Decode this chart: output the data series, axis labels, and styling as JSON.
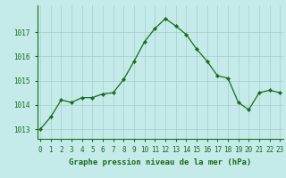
{
  "x": [
    0,
    1,
    2,
    3,
    4,
    5,
    6,
    7,
    8,
    9,
    10,
    11,
    12,
    13,
    14,
    15,
    16,
    17,
    18,
    19,
    20,
    21,
    22,
    23
  ],
  "y": [
    1013.0,
    1013.5,
    1014.2,
    1014.1,
    1014.3,
    1014.3,
    1014.45,
    1014.5,
    1015.05,
    1015.8,
    1016.6,
    1017.15,
    1017.55,
    1017.25,
    1016.9,
    1016.3,
    1015.8,
    1015.2,
    1015.1,
    1014.1,
    1013.8,
    1014.5,
    1014.6,
    1014.5
  ],
  "line_color": "#1a6b1a",
  "marker_color": "#1a6b1a",
  "bg_color": "#c5eaea",
  "grid_color": "#a8cccc",
  "border_color": "#1a6b1a",
  "xlabel": "Graphe pression niveau de la mer (hPa)",
  "xlabel_color": "#1a6b1a",
  "tick_color": "#1a6b1a",
  "ylim_min": 1012.6,
  "ylim_max": 1018.1,
  "yticks": [
    1013,
    1014,
    1015,
    1016,
    1017
  ],
  "xticks": [
    0,
    1,
    2,
    3,
    4,
    5,
    6,
    7,
    8,
    9,
    10,
    11,
    12,
    13,
    14,
    15,
    16,
    17,
    18,
    19,
    20,
    21,
    22,
    23
  ],
  "tick_fontsize": 5.5,
  "xlabel_fontsize": 6.5,
  "figwidth": 3.2,
  "figheight": 2.0,
  "dpi": 100
}
